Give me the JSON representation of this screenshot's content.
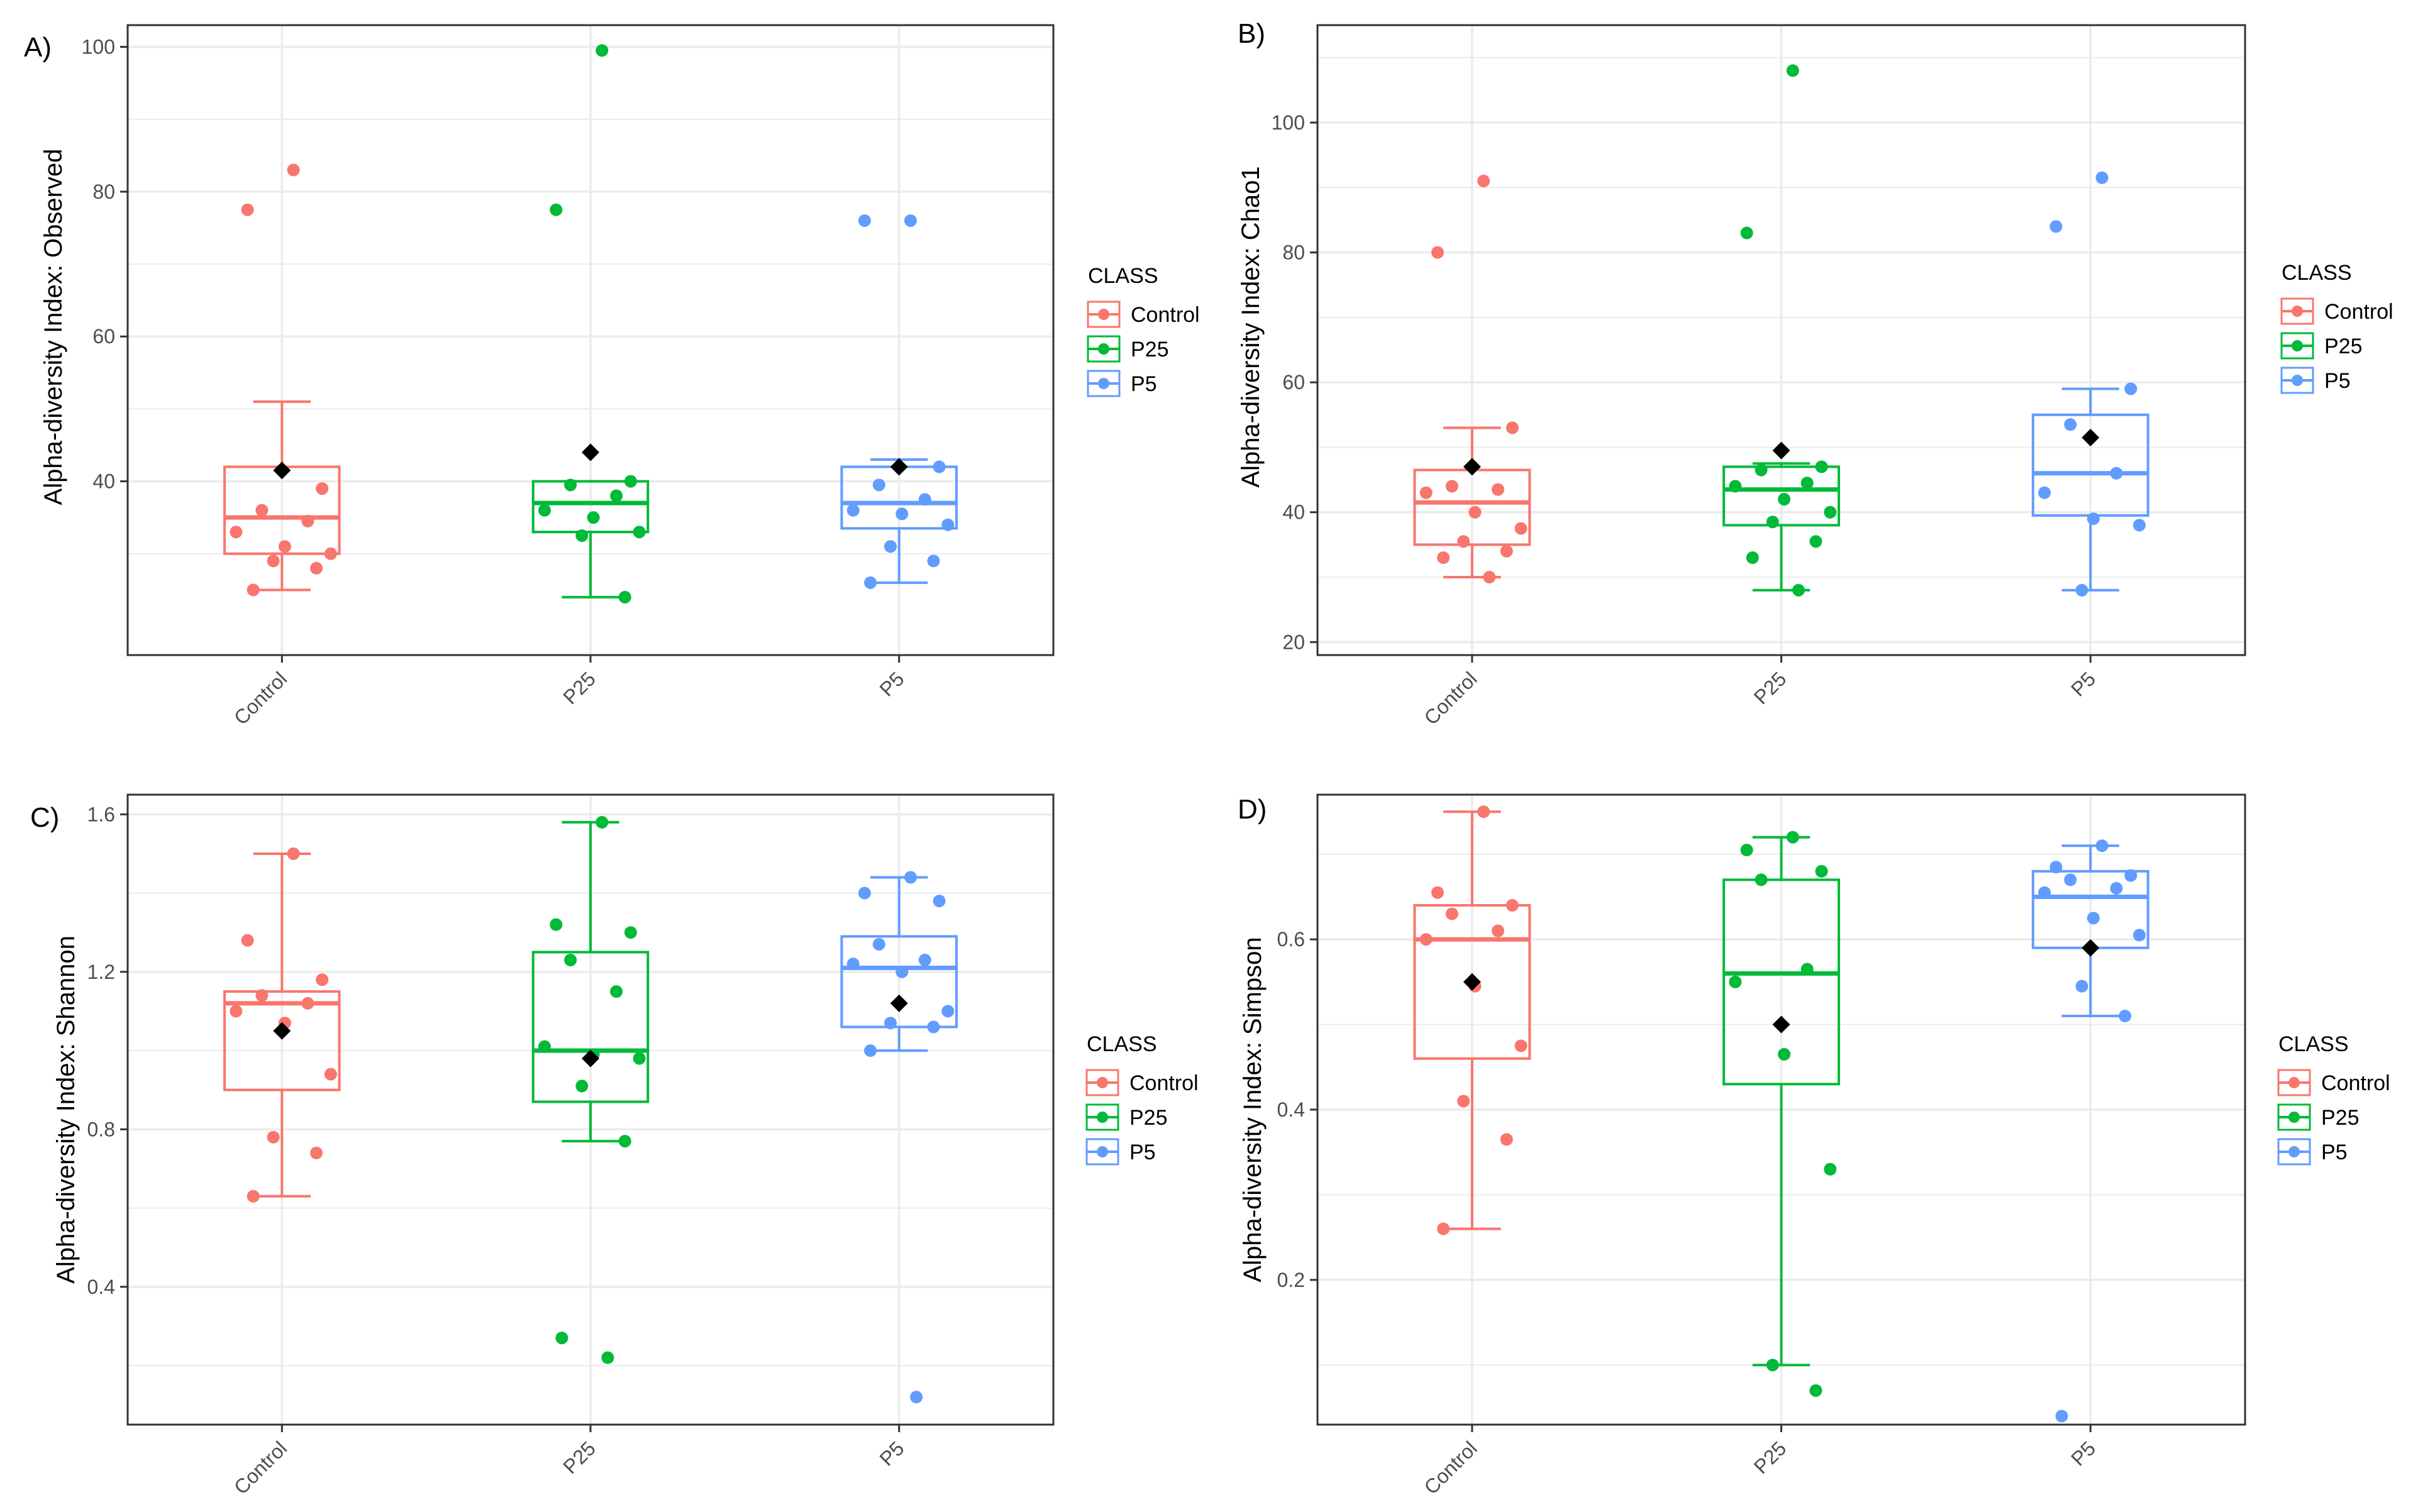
{
  "colors": {
    "Control": "#F8766D",
    "P25": "#00BA38",
    "P5": "#619CFF",
    "mean": "#000000",
    "grid": "#EBEBEB",
    "frame": "#333333"
  },
  "legend_title": "CLASS",
  "legend_items": [
    "Control",
    "P25",
    "P5"
  ],
  "chart_data": [
    {
      "panel_label": "A)",
      "type": "box",
      "ylabel": "Alpha-diversity Index: Observed",
      "categories": [
        "Control",
        "P25",
        "P5"
      ],
      "ylim": [
        16,
        103
      ],
      "yticks": [
        40,
        60,
        80,
        100
      ],
      "grid": true,
      "legend": "right",
      "boxes": [
        {
          "category": "Control",
          "lower_whisker": 25,
          "q1": 30,
          "median": 35,
          "q3": 42,
          "upper_whisker": 51,
          "mean": 41.5
        },
        {
          "category": "P25",
          "lower_whisker": 24,
          "q1": 33,
          "median": 37,
          "q3": 40,
          "upper_whisker": 40,
          "mean": 44
        },
        {
          "category": "P5",
          "lower_whisker": 26,
          "q1": 33.5,
          "median": 37,
          "q3": 42,
          "upper_whisker": 43,
          "mean": 42
        }
      ],
      "points": [
        {
          "category": "Control",
          "values": [
            83,
            77.5,
            39,
            36,
            34.5,
            33,
            31,
            30,
            29,
            28,
            25
          ]
        },
        {
          "category": "P25",
          "values": [
            99.5,
            77.5,
            40,
            39.5,
            38,
            36,
            35,
            33,
            32.5,
            24
          ]
        },
        {
          "category": "P5",
          "values": [
            76,
            76,
            42,
            39.5,
            37.5,
            36,
            35.5,
            34,
            31,
            29,
            26
          ]
        }
      ]
    },
    {
      "panel_label": "B)",
      "type": "box",
      "ylabel": "Alpha-diversity Index: Chao1",
      "categories": [
        "Control",
        "P25",
        "P5"
      ],
      "ylim": [
        18,
        115
      ],
      "yticks": [
        20,
        40,
        60,
        80,
        100
      ],
      "grid": true,
      "legend": "right",
      "boxes": [
        {
          "category": "Control",
          "lower_whisker": 30,
          "q1": 35,
          "median": 41.5,
          "q3": 46.5,
          "upper_whisker": 53,
          "mean": 47
        },
        {
          "category": "P25",
          "lower_whisker": 28,
          "q1": 38,
          "median": 43.5,
          "q3": 47,
          "upper_whisker": 47.5,
          "mean": 49.5
        },
        {
          "category": "P5",
          "lower_whisker": 28,
          "q1": 39.5,
          "median": 46,
          "q3": 55,
          "upper_whisker": 59,
          "mean": 51.5
        }
      ],
      "points": [
        {
          "category": "Control",
          "values": [
            91,
            80,
            53,
            44,
            43.5,
            43,
            40,
            37.5,
            35.5,
            34,
            33,
            30
          ]
        },
        {
          "category": "P25",
          "values": [
            108,
            83,
            47,
            46.5,
            44.5,
            44,
            42,
            40,
            38.5,
            35.5,
            33,
            28
          ]
        },
        {
          "category": "P5",
          "values": [
            91.5,
            84,
            59,
            53.5,
            46,
            43,
            39,
            38,
            28
          ]
        }
      ]
    },
    {
      "panel_label": "C)",
      "type": "box",
      "ylabel": "Alpha-diversity Index: Shannon",
      "categories": [
        "Control",
        "P25",
        "P5"
      ],
      "ylim": [
        0.05,
        1.65
      ],
      "yticks": [
        0.4,
        0.8,
        1.2,
        1.6
      ],
      "grid": true,
      "legend": "right",
      "boxes": [
        {
          "category": "Control",
          "lower_whisker": 0.63,
          "q1": 0.9,
          "median": 1.12,
          "q3": 1.15,
          "upper_whisker": 1.5,
          "mean": 1.05
        },
        {
          "category": "P25",
          "lower_whisker": 0.77,
          "q1": 0.87,
          "median": 1.0,
          "q3": 1.25,
          "upper_whisker": 1.58,
          "mean": 0.98
        },
        {
          "category": "P5",
          "lower_whisker": 1.0,
          "q1": 1.06,
          "median": 1.21,
          "q3": 1.29,
          "upper_whisker": 1.44,
          "mean": 1.12
        }
      ],
      "points": [
        {
          "category": "Control",
          "values": [
            1.5,
            1.28,
            1.18,
            1.14,
            1.12,
            1.1,
            1.07,
            0.94,
            0.78,
            0.74,
            0.63
          ]
        },
        {
          "category": "P25",
          "values": [
            1.58,
            1.32,
            1.3,
            1.23,
            1.15,
            1.01,
            0.99,
            0.98,
            0.91,
            0.77,
            0.27,
            0.22
          ]
        },
        {
          "category": "P5",
          "values": [
            1.44,
            1.4,
            1.38,
            1.27,
            1.23,
            1.22,
            1.2,
            1.1,
            1.07,
            1.06,
            1.0,
            0.12
          ]
        }
      ]
    },
    {
      "panel_label": "D)",
      "type": "box",
      "ylabel": "Alpha-diversity Index: Simpson",
      "categories": [
        "Control",
        "P25",
        "P5"
      ],
      "ylim": [
        0.03,
        0.77
      ],
      "yticks": [
        0.2,
        0.4,
        0.6
      ],
      "grid": true,
      "legend": "right",
      "boxes": [
        {
          "category": "Control",
          "lower_whisker": 0.26,
          "q1": 0.46,
          "median": 0.6,
          "q3": 0.64,
          "upper_whisker": 0.75,
          "mean": 0.55
        },
        {
          "category": "P25",
          "lower_whisker": 0.1,
          "q1": 0.43,
          "median": 0.56,
          "q3": 0.67,
          "upper_whisker": 0.72,
          "mean": 0.5
        },
        {
          "category": "P5",
          "lower_whisker": 0.51,
          "q1": 0.59,
          "median": 0.65,
          "q3": 0.68,
          "upper_whisker": 0.71,
          "mean": 0.59
        }
      ],
      "points": [
        {
          "category": "Control",
          "values": [
            0.75,
            0.655,
            0.64,
            0.63,
            0.61,
            0.6,
            0.545,
            0.475,
            0.41,
            0.365,
            0.26
          ]
        },
        {
          "category": "P25",
          "values": [
            0.72,
            0.705,
            0.68,
            0.67,
            0.565,
            0.55,
            0.465,
            0.33,
            0.1,
            0.07
          ]
        },
        {
          "category": "P5",
          "values": [
            0.71,
            0.685,
            0.675,
            0.67,
            0.66,
            0.655,
            0.625,
            0.605,
            0.545,
            0.51,
            0.04
          ]
        }
      ]
    }
  ]
}
